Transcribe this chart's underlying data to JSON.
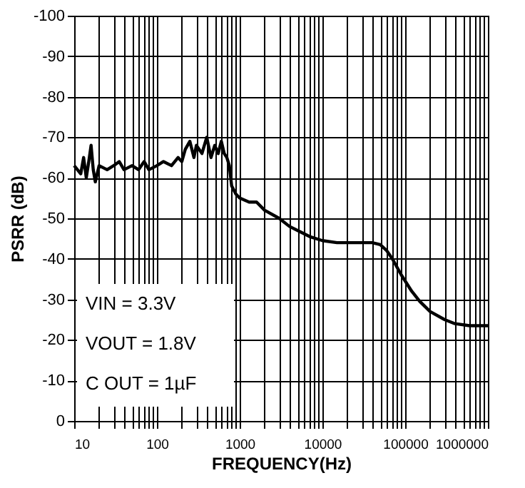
{
  "chart_data": {
    "type": "line",
    "xlabel": "FREQUENCY(Hz)",
    "ylabel": "PSRR (dB)",
    "log": "x",
    "grid": true,
    "line_style": "solid",
    "marker": "none",
    "xlim": [
      10,
      1000000
    ],
    "ylim": [
      0,
      -100
    ],
    "xticks": [
      10,
      {
        "value": 20,
        "label": null
      },
      {
        "value": 30,
        "label": null
      },
      {
        "value": 40,
        "label": null
      },
      {
        "value": 50,
        "label": null
      },
      {
        "value": 60,
        "label": null
      },
      {
        "value": 70,
        "label": null
      },
      {
        "value": 80,
        "label": null
      },
      {
        "value": 90,
        "label": null
      },
      100,
      {
        "value": 200,
        "label": null
      },
      {
        "value": 300,
        "label": null
      },
      {
        "value": 400,
        "label": null
      },
      {
        "value": 500,
        "label": null
      },
      {
        "value": 600,
        "label": null
      },
      {
        "value": 700,
        "label": null
      },
      {
        "value": 800,
        "label": null
      },
      {
        "value": 900,
        "label": null
      },
      1000,
      {
        "value": 2000,
        "label": null
      },
      {
        "value": 3000,
        "label": null
      },
      {
        "value": 4000,
        "label": null
      },
      {
        "value": 5000,
        "label": null
      },
      {
        "value": 6000,
        "label": null
      },
      {
        "value": 7000,
        "label": null
      },
      {
        "value": 8000,
        "label": null
      },
      {
        "value": 9000,
        "label": null
      },
      10000,
      {
        "value": 20000,
        "label": null
      },
      {
        "value": 30000,
        "label": null
      },
      {
        "value": 40000,
        "label": null
      },
      {
        "value": 50000,
        "label": null
      },
      {
        "value": 60000,
        "label": null
      },
      {
        "value": 70000,
        "label": null
      },
      {
        "value": 80000,
        "label": null
      },
      {
        "value": 90000,
        "label": null
      },
      100000,
      {
        "value": 200000,
        "label": null
      },
      {
        "value": 300000,
        "label": null
      },
      {
        "value": 400000,
        "label": null
      },
      {
        "value": 500000,
        "label": null
      },
      {
        "value": 600000,
        "label": null
      },
      {
        "value": 700000,
        "label": null
      },
      {
        "value": 800000,
        "label": null
      },
      {
        "value": 900000,
        "label": null
      },
      1000000
    ],
    "yticks": [
      0,
      -10,
      -20,
      -30,
      -40,
      -50,
      -60,
      -70,
      -80,
      -90,
      -100
    ],
    "annotations": [
      "VIN = 3.3V",
      "VOUT = 1.8V",
      "C OUT = 1µF"
    ],
    "series": [
      {
        "color": "#000000",
        "x": [
          10,
          12,
          13,
          14,
          15,
          16,
          17,
          18,
          20,
          25,
          30,
          35,
          40,
          50,
          60,
          70,
          80,
          100,
          120,
          150,
          180,
          200,
          220,
          250,
          280,
          300,
          350,
          400,
          450,
          500,
          550,
          600,
          650,
          700,
          750,
          800,
          900,
          1000,
          1300,
          1600,
          2000,
          3000,
          4000,
          5000,
          7000,
          10000,
          15000,
          20000,
          30000,
          40000,
          50000,
          60000,
          70000,
          90000,
          120000,
          150000,
          200000,
          300000,
          400000,
          600000,
          1000000
        ],
        "values": [
          -63,
          -61,
          -65,
          -60,
          -64,
          -68,
          -62,
          -59,
          -63,
          -62,
          -63,
          -64,
          -62,
          -63,
          -62,
          -64,
          -62,
          -63,
          -64,
          -63,
          -65,
          -64,
          -67,
          -69,
          -65,
          -68,
          -66,
          -70,
          -65,
          -68,
          -66,
          -69,
          -66,
          -65,
          -63,
          -58,
          -56,
          -55,
          -54,
          -54,
          -52,
          -50,
          -48,
          -47,
          -45.5,
          -44.5,
          -44,
          -44,
          -44,
          -44,
          -43.5,
          -42,
          -40,
          -36,
          -32,
          -29.5,
          -27,
          -25,
          -24,
          -23.5,
          -23.5
        ]
      }
    ]
  }
}
